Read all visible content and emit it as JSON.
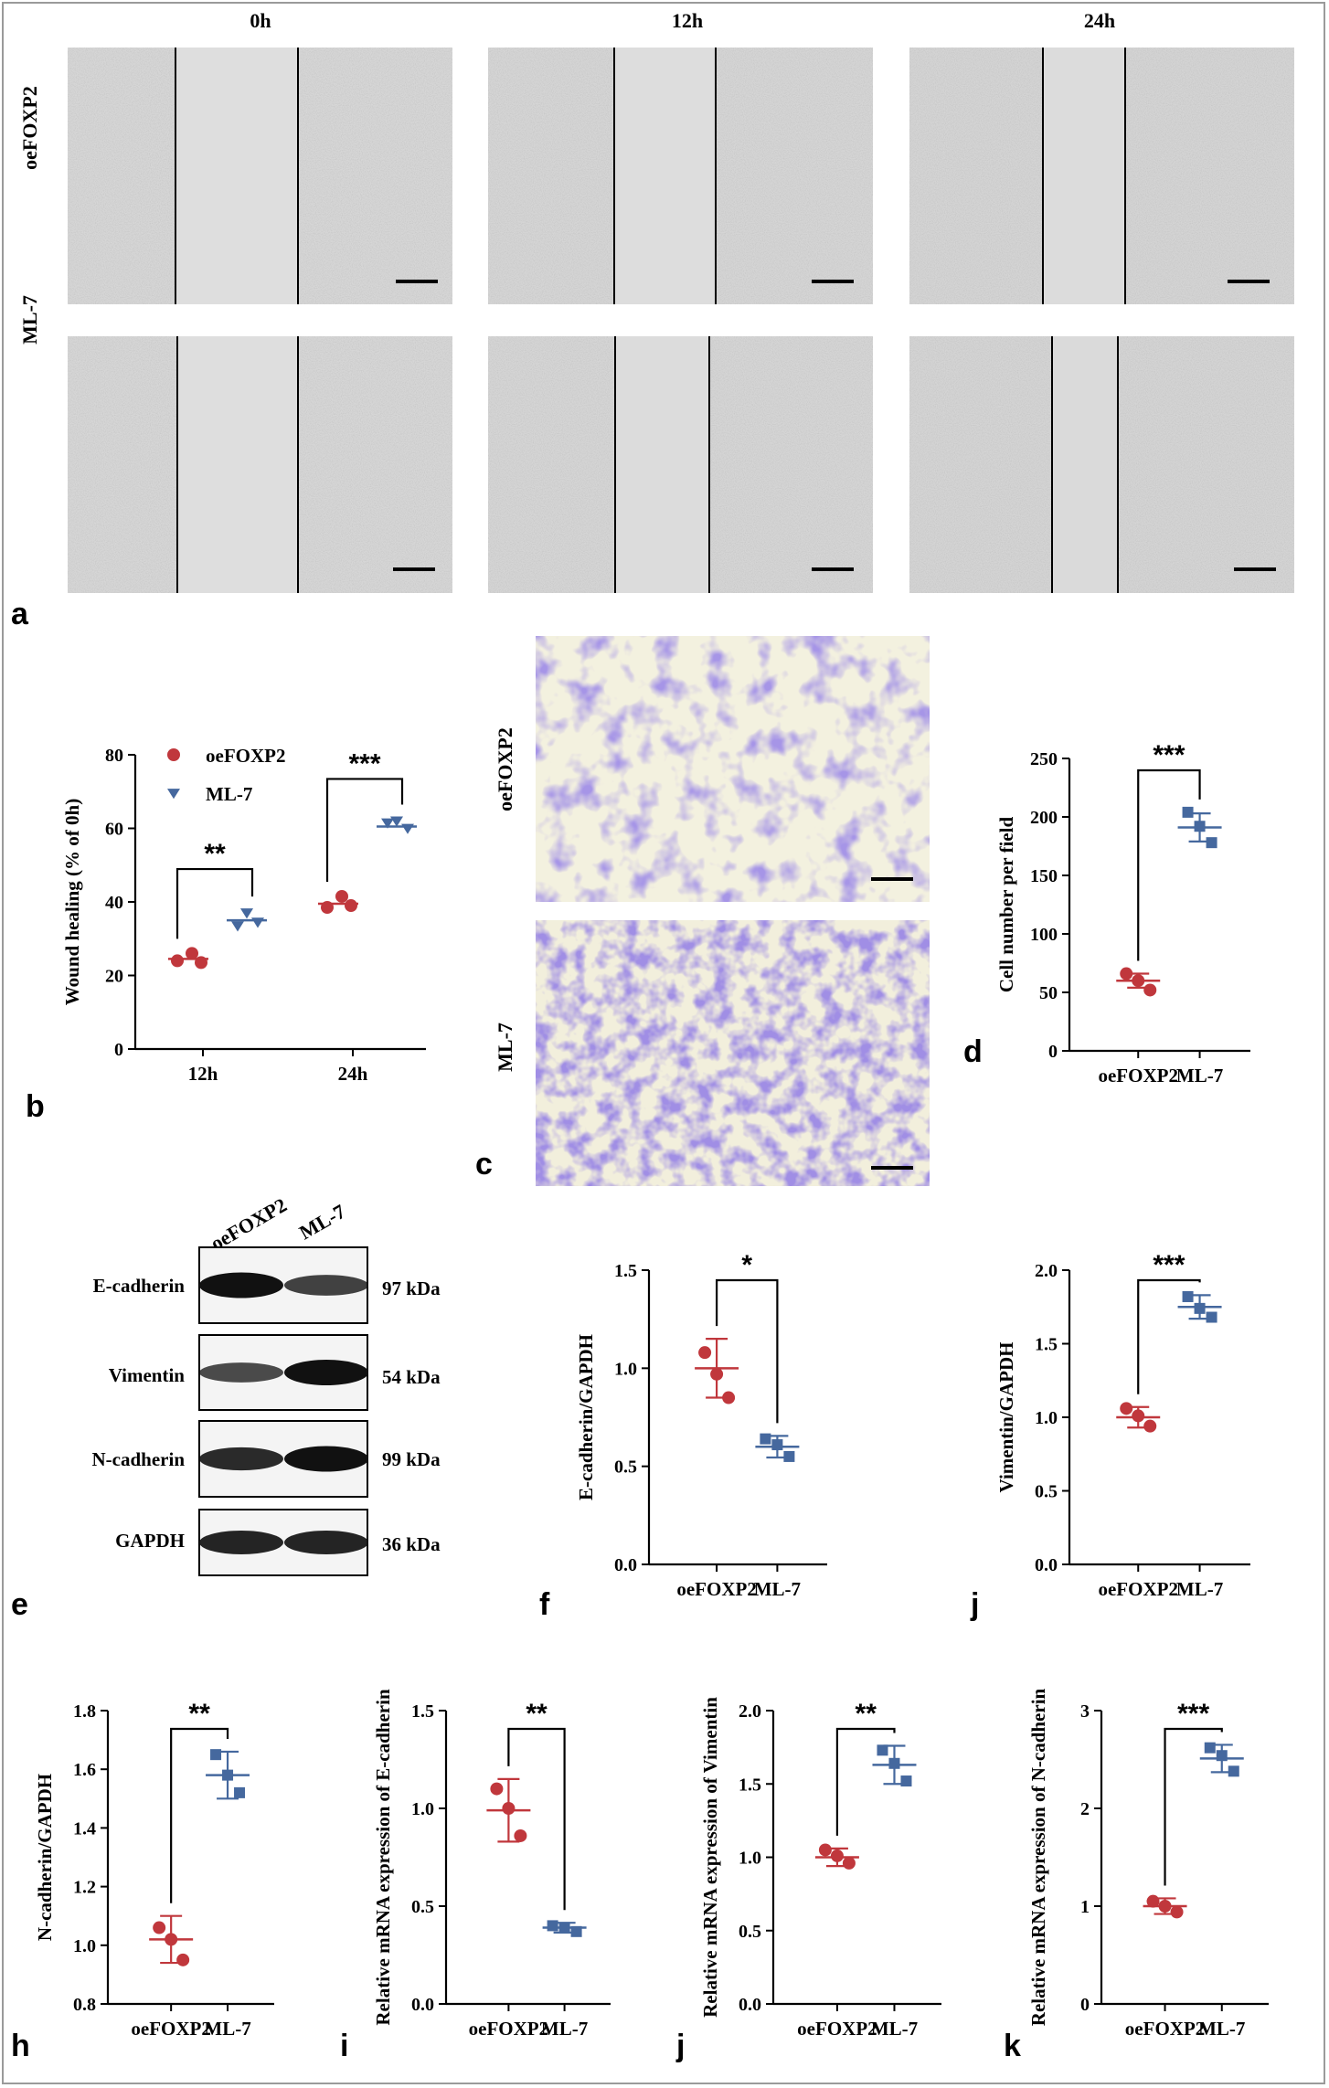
{
  "figure": {
    "panel_a": {
      "letter": "a",
      "time_labels": [
        "0h",
        "12h",
        "24h"
      ],
      "row_labels": [
        "oeFOXP2",
        "ML-7"
      ],
      "image_description": "Wound-healing scratch assay micrographs"
    },
    "panel_b": {
      "letter": "b",
      "legend": [
        "oeFOXP2",
        "ML-7"
      ],
      "significance": [
        "**",
        "***"
      ]
    },
    "panel_c": {
      "letter": "c",
      "row_labels": [
        "oeFOXP2",
        "ML-7"
      ],
      "image_description": "Transwell migration crystal-violet stained micrographs"
    },
    "panel_d": {
      "letter": "d",
      "significance": [
        "***"
      ]
    },
    "panel_e": {
      "letter": "e",
      "lane_labels": [
        "oeFOXP2",
        "ML-7"
      ],
      "proteins": [
        "E-cadherin",
        "Vimentin",
        "N-cadherin",
        "GAPDH"
      ],
      "sizes": [
        "97 kDa",
        "54 kDa",
        "99 kDa",
        "36 kDa"
      ],
      "band_intensity": [
        [
          1.0,
          0.62
        ],
        [
          0.55,
          1.0
        ],
        [
          0.8,
          1.0
        ],
        [
          0.85,
          0.85
        ]
      ]
    },
    "panel_f": {
      "letter": "f",
      "significance": [
        "*"
      ]
    },
    "panel_j1": {
      "letter": "j",
      "significance": [
        "***"
      ]
    },
    "panel_h": {
      "letter": "h",
      "significance": [
        "**"
      ]
    },
    "panel_i": {
      "letter": "i",
      "significance": [
        "**"
      ]
    },
    "panel_j2": {
      "letter": "j",
      "significance": [
        "**"
      ]
    },
    "panel_k": {
      "letter": "k",
      "significance": [
        "***"
      ]
    }
  },
  "colors": {
    "group1": "#c0373c",
    "group2": "#45689e",
    "axis": "#000000"
  },
  "chart_data": [
    {
      "id": "b",
      "type": "scatter",
      "categories": [
        "12h",
        "24h"
      ],
      "ylabel": "Wound healing (% of 0h)",
      "ylim": [
        0,
        80
      ],
      "yticks": [
        0,
        20,
        40,
        60,
        80
      ],
      "series": [
        {
          "name": "oeFOXP2",
          "marker": "circle",
          "points": [
            [
              24,
              26,
              23.5
            ],
            [
              38.5,
              41.5,
              39
            ]
          ],
          "mean": [
            24.5,
            39.5
          ]
        },
        {
          "name": "ML-7",
          "marker": "triangle",
          "points": [
            [
              37,
              33.5,
              34.5
            ],
            [
              62,
              61.5,
              60
            ]
          ],
          "mean": [
            35,
            60.5
          ]
        }
      ]
    },
    {
      "id": "d",
      "type": "scatter",
      "categories": [
        "oeFOXP2",
        "ML-7"
      ],
      "ylabel": "Cell number per field",
      "ylim": [
        0,
        250
      ],
      "yticks": [
        0,
        50,
        100,
        150,
        200,
        250
      ],
      "points": [
        [
          66,
          52,
          60
        ],
        [
          204,
          178,
          192
        ]
      ],
      "mean": [
        60,
        191
      ],
      "sd": [
        6,
        12
      ]
    },
    {
      "id": "f",
      "type": "scatter",
      "categories": [
        "oeFOXP2",
        "ML-7"
      ],
      "ylabel": "E-cadherin/GAPDH",
      "ylim": [
        0,
        1.5
      ],
      "yticks": [
        "0.0",
        "0.5",
        "1.0",
        "1.5"
      ],
      "points": [
        [
          1.08,
          0.85,
          0.97
        ],
        [
          0.64,
          0.55,
          0.61
        ]
      ],
      "mean": [
        1.0,
        0.6
      ],
      "sd": [
        0.15,
        0.055
      ]
    },
    {
      "id": "j1",
      "type": "scatter",
      "categories": [
        "oeFOXP2",
        "ML-7"
      ],
      "ylabel": "Vimentin/GAPDH",
      "ylim": [
        0,
        2.0
      ],
      "yticks": [
        "0.0",
        "0.5",
        "1.0",
        "1.5",
        "2.0"
      ],
      "points": [
        [
          1.06,
          0.94,
          1.01
        ],
        [
          1.82,
          1.68,
          1.74
        ]
      ],
      "mean": [
        1.0,
        1.75
      ],
      "sd": [
        0.07,
        0.08
      ]
    },
    {
      "id": "h",
      "type": "scatter",
      "categories": [
        "oeFOXP2",
        "ML-7"
      ],
      "ylabel": "N-cadherin/GAPDH",
      "ylim": [
        0.8,
        1.8
      ],
      "yticks": [
        "0.8",
        "1.0",
        "1.2",
        "1.4",
        "1.6",
        "1.8"
      ],
      "points": [
        [
          1.06,
          0.95,
          1.02
        ],
        [
          1.65,
          1.52,
          1.58
        ]
      ],
      "mean": [
        1.02,
        1.58
      ],
      "sd": [
        0.08,
        0.08
      ]
    },
    {
      "id": "i",
      "type": "scatter",
      "categories": [
        "oeFOXP2",
        "ML-7"
      ],
      "ylabel": "Relative mRNA expression of E-cadherin",
      "ylim": [
        0,
        1.5
      ],
      "yticks": [
        "0.0",
        "0.5",
        "1.0",
        "1.5"
      ],
      "points": [
        [
          1.1,
          0.86,
          1.0
        ],
        [
          0.4,
          0.37,
          0.39
        ]
      ],
      "mean": [
        0.99,
        0.39
      ],
      "sd": [
        0.16,
        0.025
      ]
    },
    {
      "id": "j2",
      "type": "scatter",
      "categories": [
        "oeFOXP2",
        "ML-7"
      ],
      "ylabel": "Relative mRNA expression of Vimentin",
      "ylim": [
        0,
        2.0
      ],
      "yticks": [
        "0.0",
        "0.5",
        "1.0",
        "1.5",
        "2.0"
      ],
      "points": [
        [
          1.05,
          0.96,
          1.01
        ],
        [
          1.73,
          1.52,
          1.64
        ]
      ],
      "mean": [
        1.0,
        1.63
      ],
      "sd": [
        0.06,
        0.13
      ]
    },
    {
      "id": "k",
      "type": "scatter",
      "categories": [
        "oeFOXP2",
        "ML-7"
      ],
      "ylabel": "Relative mRNA expression of N-cadherin",
      "ylim": [
        0,
        3
      ],
      "yticks": [
        "0",
        "1",
        "2",
        "3"
      ],
      "points": [
        [
          1.05,
          0.94,
          1.0
        ],
        [
          2.62,
          2.38,
          2.54
        ]
      ],
      "mean": [
        1.0,
        2.51
      ],
      "sd": [
        0.08,
        0.14
      ]
    }
  ]
}
